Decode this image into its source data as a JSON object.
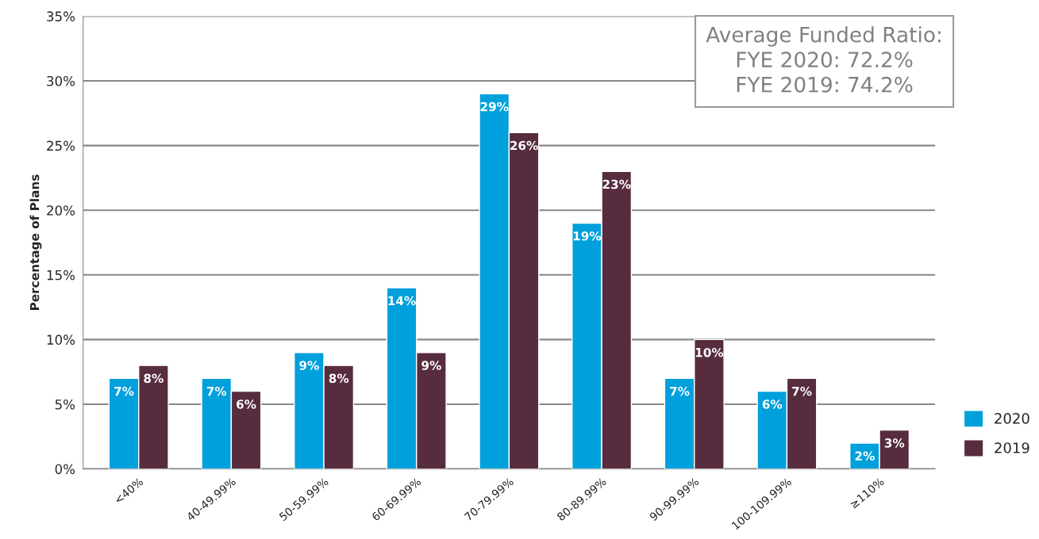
{
  "chart_data": {
    "type": "bar",
    "ylabel": "Percentage of Plans",
    "categories": [
      "<40%",
      "40-49.99%",
      "50-59.99%",
      "60-69.99%",
      "70-79.99%",
      "80-89.99%",
      "90-99.99%",
      "100-109.99%",
      "≥110%"
    ],
    "series": [
      {
        "name": "2020",
        "color": "#00a0dc",
        "values": [
          7,
          7,
          9,
          14,
          29,
          19,
          7,
          6,
          2
        ],
        "value_labels": [
          "7%",
          "7%",
          "9%",
          "14%",
          "29%",
          "19%",
          "7%",
          "6%",
          "2%"
        ]
      },
      {
        "name": "2019",
        "color": "#582c3f",
        "values": [
          8,
          6,
          8,
          9,
          26,
          23,
          10,
          7,
          3
        ],
        "value_labels": [
          "8%",
          "6%",
          "8%",
          "9%",
          "26%",
          "23%",
          "10%",
          "7%",
          "3%"
        ]
      }
    ],
    "ylim": [
      0,
      35
    ],
    "yticks": [
      {
        "value": 0,
        "label": "0%"
      },
      {
        "value": 5,
        "label": "5%"
      },
      {
        "value": 10,
        "label": "10%"
      },
      {
        "value": 15,
        "label": "15%"
      },
      {
        "value": 20,
        "label": "20%"
      },
      {
        "value": 25,
        "label": "25%"
      },
      {
        "value": 30,
        "label": "30%"
      },
      {
        "value": 35,
        "label": "35%"
      }
    ],
    "grid": "y",
    "legend": "bottom right",
    "annotations": [
      "Average Funded Ratio:\nFYE 2020: 72.2%\nFYE 2019: 74.2%"
    ]
  }
}
